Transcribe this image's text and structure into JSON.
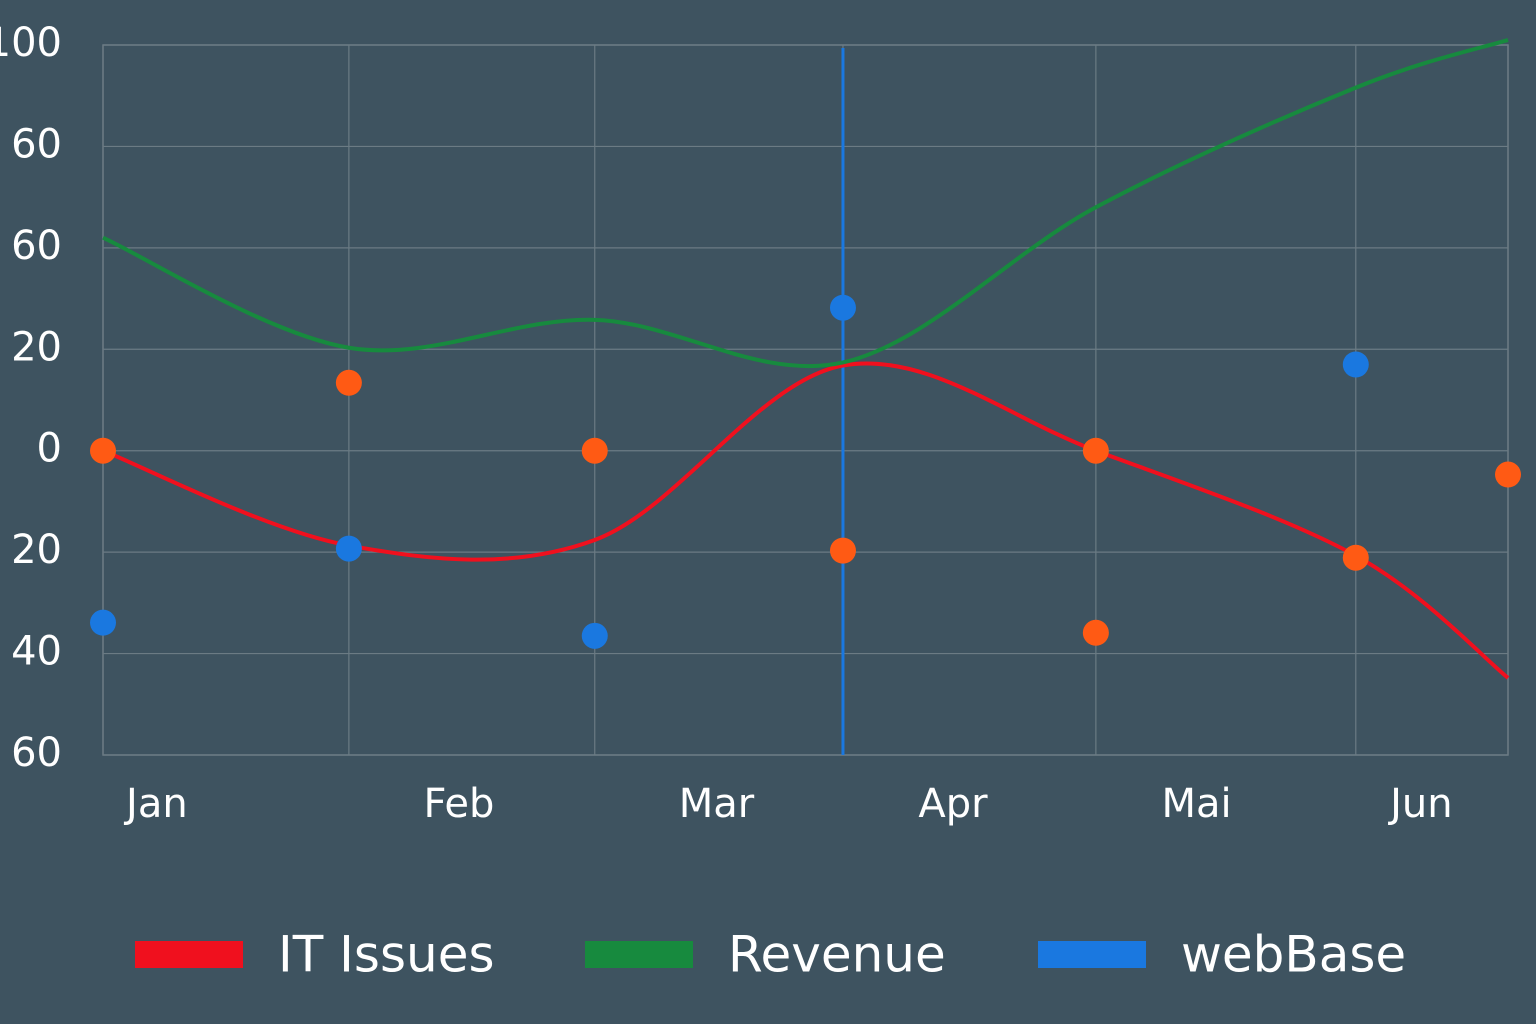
{
  "chart_data": {
    "type": "line",
    "x": [
      0,
      1.05,
      2.1,
      3.16,
      4.24,
      5.35,
      6
    ],
    "xlim": [
      0,
      6
    ],
    "xticks": [
      {
        "value": 0.23,
        "label": "Jan"
      },
      {
        "value": 1.52,
        "label": "Feb"
      },
      {
        "value": 2.62,
        "label": "Mar"
      },
      {
        "value": 3.63,
        "label": "Apr"
      },
      {
        "value": 4.67,
        "label": "Mai"
      },
      {
        "value": 5.63,
        "label": "Jun"
      }
    ],
    "ylim": [
      -60,
      80
    ],
    "yticks": [
      {
        "value": 80,
        "label": "100"
      },
      60,
      {
        "value": 40,
        "label": "60"
      },
      20,
      0,
      {
        "value": -20,
        "label": "20"
      },
      {
        "value": -40,
        "label": "40"
      },
      {
        "value": -60,
        "label": "60"
      }
    ],
    "grid": true,
    "marker_line": {
      "x": 3.16,
      "color": "#1a78e0"
    },
    "series": [
      {
        "name": "IT Issues",
        "type": "line",
        "color": "#f0101e",
        "values": [
          0,
          -18.7,
          -17.6,
          16.8,
          0,
          -20.7,
          -44.8
        ]
      },
      {
        "name": "Revenue",
        "type": "line",
        "color": "#178a3e",
        "values": [
          42,
          20.3,
          25.8,
          17.4,
          48,
          71.6,
          81
        ]
      },
      {
        "name": "webBase",
        "type": "scatter",
        "color": "#1a78e0",
        "values": [
          -33.9,
          -19.3,
          -36.5,
          28.2,
          null,
          17,
          null
        ]
      },
      {
        "type": "scatter",
        "color": "#ff5a14",
        "x": [
          0,
          1.05,
          2.1,
          3.16,
          4.24,
          4.24,
          5.35,
          6
        ],
        "values": [
          0,
          13.4,
          0,
          -19.7,
          0,
          -35.9,
          -21.1,
          -4.7
        ]
      }
    ]
  }
}
